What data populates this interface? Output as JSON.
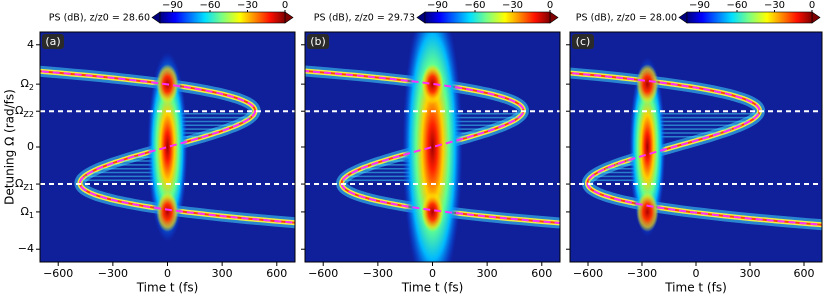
{
  "chart_data": [
    {
      "type": "heatmap",
      "panel_label": "(a)",
      "colorbar_label": "PS (dB), z/z0 = 28.60",
      "colorbar_lim": [
        -100,
        0
      ],
      "colorbar_ticks": [
        {
          "value": -90,
          "label": "−90"
        },
        {
          "value": -60,
          "label": "−60"
        },
        {
          "value": -30,
          "label": "−30"
        },
        0
      ],
      "xlabel": "Time t (fs)",
      "xlim": [
        -700,
        700
      ],
      "xticks": [
        {
          "value": -600,
          "label": "−600"
        },
        {
          "value": -300,
          "label": "−300"
        },
        0,
        300,
        600
      ],
      "ylabel": "Detuning Ω (rad/fs)",
      "ylim": [
        -4.5,
        4.5
      ],
      "yticks": [
        {
          "value": -4,
          "label": "−4"
        },
        {
          "value": -2.54,
          "label": "Ω1"
        },
        {
          "value": -1.45,
          "label": "ΩZ1"
        },
        0,
        {
          "value": 1.4,
          "label": "ΩZ2"
        },
        {
          "value": 2.46,
          "label": "Ω2"
        },
        4
      ]
    },
    {
      "type": "heatmap",
      "panel_label": "(b)",
      "colorbar_label": "PS (dB), z/z0 = 29.73",
      "colorbar_lim": [
        -100,
        0
      ],
      "colorbar_ticks": [
        {
          "value": -90,
          "label": "−90"
        },
        {
          "value": -60,
          "label": "−60"
        },
        {
          "value": -30,
          "label": "−30"
        },
        0
      ],
      "xlabel": "Time t (fs)",
      "xlim": [
        -700,
        700
      ],
      "xticks": [
        {
          "value": -600,
          "label": "−600"
        },
        {
          "value": -300,
          "label": "−300"
        },
        0,
        300,
        600
      ]
    },
    {
      "type": "heatmap",
      "panel_label": "(c)",
      "colorbar_label": "PS (dB), z/z0 = 28.00",
      "colorbar_lim": [
        -100,
        0
      ],
      "colorbar_ticks": [
        {
          "value": -90,
          "label": "−90"
        },
        {
          "value": -60,
          "label": "−60"
        },
        {
          "value": -30,
          "label": "−30"
        },
        0
      ],
      "xlabel": "Time t (fs)",
      "xlim": [
        -700,
        700
      ],
      "xticks": [
        {
          "value": -600,
          "label": "−600"
        },
        {
          "value": -300,
          "label": "−300"
        },
        0,
        300,
        600
      ]
    }
  ]
}
